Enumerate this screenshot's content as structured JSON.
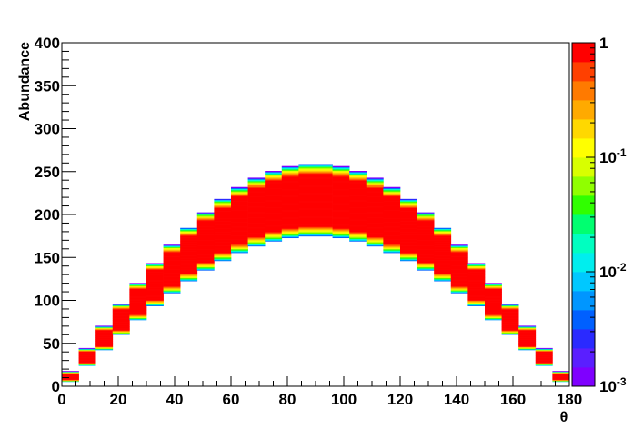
{
  "chart_data": {
    "type": "heatmap",
    "title": "",
    "xlabel": "θ",
    "ylabel": "Abundance",
    "xlim": [
      0,
      180
    ],
    "ylim": [
      0,
      400
    ],
    "x_bin_width": 6,
    "x_ticks": [
      "0",
      "20",
      "40",
      "60",
      "80",
      "100",
      "120",
      "140",
      "160",
      "180"
    ],
    "x_tick_values": [
      0,
      20,
      40,
      60,
      80,
      100,
      120,
      140,
      160,
      180
    ],
    "y_ticks": [
      "0",
      "50",
      "100",
      "150",
      "200",
      "250",
      "300",
      "350",
      "400"
    ],
    "y_tick_values": [
      0,
      50,
      100,
      150,
      200,
      250,
      300,
      350,
      400
    ],
    "z_scale": "log",
    "z_range": [
      0.001,
      1
    ],
    "colorbar_labels": [
      {
        "value": 1,
        "base": "1",
        "exp": ""
      },
      {
        "value": 0.1,
        "base": "10",
        "exp": "-1"
      },
      {
        "value": 0.01,
        "base": "10",
        "exp": "-2"
      },
      {
        "value": 0.001,
        "base": "10",
        "exp": "-3"
      }
    ],
    "palette": [
      "#7f00ff",
      "#5a1fff",
      "#2a2aff",
      "#0060ff",
      "#0096ff",
      "#00c8ff",
      "#00eeee",
      "#00ffc0",
      "#00ff70",
      "#30ff00",
      "#90ff00",
      "#d8ff00",
      "#ffff00",
      "#ffd800",
      "#ffaa00",
      "#ff7a00",
      "#ff4000",
      "#ff0000"
    ],
    "band_model": {
      "description_of_encoding": "",
      "peak_abundance": 217,
      "core_half_width_fraction": 0.13,
      "tail_fraction": 0.045
    }
  }
}
